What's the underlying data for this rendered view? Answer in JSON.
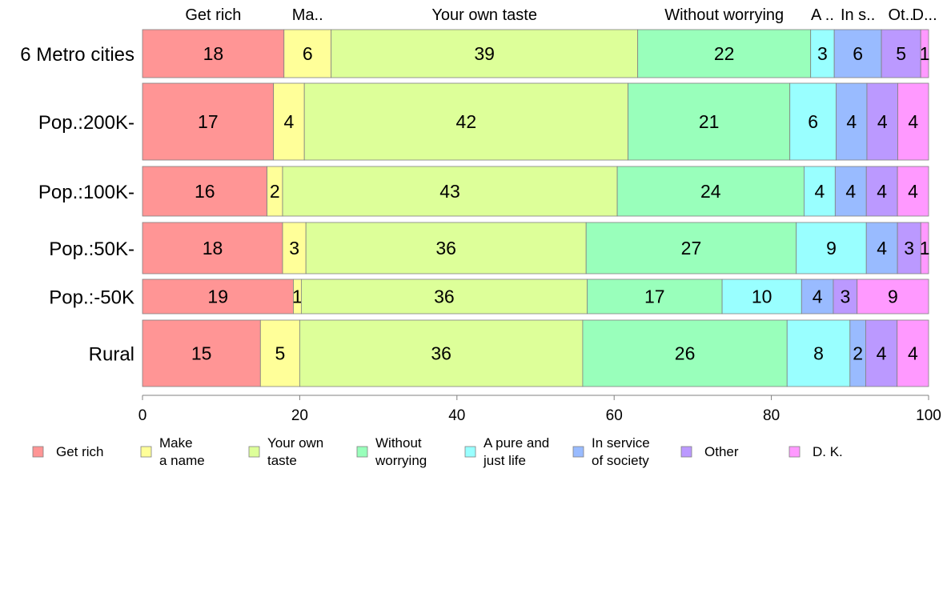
{
  "chart_data": {
    "type": "bar",
    "orientation": "horizontal",
    "stacked": true,
    "categories": [
      "6 Metro cities",
      "Pop.:200K-",
      "Pop.:100K-",
      "Pop.:50K-",
      "Pop.:-50K",
      "Rural"
    ],
    "series": [
      {
        "name": "Get rich",
        "color": "#ff9595",
        "values": [
          18,
          17,
          16,
          18,
          19,
          15
        ]
      },
      {
        "name": "Make a name",
        "color": "#ffff99",
        "values": [
          6,
          4,
          2,
          3,
          1,
          5
        ]
      },
      {
        "name": "Your own taste",
        "color": "#ddff99",
        "values": [
          39,
          42,
          43,
          36,
          36,
          36
        ]
      },
      {
        "name": "Without worrying",
        "color": "#99ffbb",
        "values": [
          22,
          21,
          24,
          27,
          17,
          26
        ]
      },
      {
        "name": "A pure and just life",
        "color": "#99ffff",
        "values": [
          3,
          6,
          4,
          9,
          10,
          8
        ]
      },
      {
        "name": "In service of society",
        "color": "#99bbff",
        "values": [
          6,
          4,
          4,
          4,
          4,
          2
        ]
      },
      {
        "name": "Other",
        "color": "#bb99ff",
        "values": [
          5,
          4,
          4,
          3,
          3,
          4
        ]
      },
      {
        "name": "D. K.",
        "color": "#ff99ff",
        "values": [
          1,
          4,
          4,
          1,
          9,
          4
        ]
      }
    ],
    "top_labels": [
      "Get rich",
      "Ma..",
      "Your own taste",
      "Without worrying",
      "A ..",
      "In s..",
      "Ot..",
      "D..."
    ],
    "legend": [
      [
        "Get rich"
      ],
      [
        "Make",
        "a name"
      ],
      [
        "Your own",
        "taste"
      ],
      [
        "Without",
        "worrying"
      ],
      [
        "A pure and",
        "just life"
      ],
      [
        "In service",
        "of society"
      ],
      [
        "Other"
      ],
      [
        "D. K."
      ]
    ],
    "xlim": [
      0,
      100
    ],
    "xticks": [
      0,
      20,
      40,
      60,
      80,
      100
    ],
    "legend_position": "bottom",
    "grid": false,
    "title": "",
    "xlabel": "",
    "ylabel": ""
  }
}
